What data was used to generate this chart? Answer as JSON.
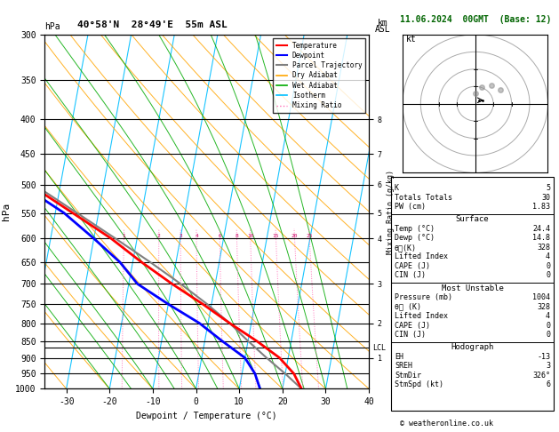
{
  "title_left": "40°58'N  28°49'E  55m ASL",
  "title_right": "11.06.2024  00GMT  (Base: 12)",
  "xlabel": "Dewpoint / Temperature (°C)",
  "ylabel_left": "hPa",
  "ylabel_right2": "Mixing Ratio (g/kg)",
  "pressure_levels": [
    300,
    350,
    400,
    450,
    500,
    550,
    600,
    650,
    700,
    750,
    800,
    850,
    900,
    950,
    1000
  ],
  "pressure_labels": [
    "300",
    "350",
    "400",
    "450",
    "500",
    "550",
    "600",
    "650",
    "700",
    "750",
    "800",
    "850",
    "900",
    "950",
    "1000"
  ],
  "temp_range": [
    -35,
    40
  ],
  "temp_ticks": [
    -30,
    -20,
    -10,
    0,
    10,
    20,
    30,
    40
  ],
  "skew_factor": 15,
  "isotherm_color": "#00BFFF",
  "dry_adiabat_color": "#FFA500",
  "wet_adiabat_color": "#00AA00",
  "mixing_ratio_color": "#FF69B4",
  "mixing_ratios": [
    1,
    2,
    3,
    4,
    6,
    8,
    10,
    15,
    20,
    25
  ],
  "temperature_profile_T": [
    24.4,
    22.0,
    18.0,
    12.0,
    5.0,
    -2.0,
    -10.0,
    -18.0,
    -26.0,
    -36.0,
    -47.0,
    -57.0,
    -60.0
  ],
  "temperature_profile_P": [
    1000,
    950,
    900,
    850,
    800,
    750,
    700,
    650,
    600,
    550,
    500,
    450,
    400
  ],
  "dewpoint_profile_T": [
    14.8,
    13.0,
    10.0,
    4.0,
    -2.0,
    -10.0,
    -18.0,
    -23.0,
    -30.0,
    -38.0,
    -49.0,
    -60.0,
    -70.0
  ],
  "dewpoint_profile_P": [
    1000,
    950,
    900,
    850,
    800,
    750,
    700,
    650,
    600,
    550,
    500,
    450,
    400
  ],
  "parcel_T": [
    24.4,
    20.0,
    15.0,
    10.0,
    5.0,
    -1.0,
    -8.0,
    -16.0,
    -25.0,
    -35.0,
    -46.0,
    -57.0,
    -62.0
  ],
  "parcel_P": [
    1000,
    950,
    900,
    850,
    800,
    750,
    700,
    650,
    600,
    550,
    500,
    450,
    400
  ],
  "km_ticks": [
    1,
    2,
    3,
    4,
    5,
    6,
    7,
    8
  ],
  "km_pressures": [
    900,
    800,
    700,
    600,
    550,
    500,
    450,
    400
  ],
  "lcl_pressure": 870,
  "temp_line_color": "#FF0000",
  "dewp_line_color": "#0000FF",
  "parcel_line_color": "#808080",
  "info_K": 5,
  "info_TT": 30,
  "info_PW": 1.83,
  "sfc_temp": 24.4,
  "sfc_dewp": 14.8,
  "sfc_theta_e": 328,
  "sfc_lifted_index": 4,
  "sfc_cape": 0,
  "sfc_cin": 0,
  "mu_pressure": 1004,
  "mu_theta_e": 328,
  "mu_lifted_index": 4,
  "mu_cape": 0,
  "mu_cin": 0,
  "hodo_EH": -13,
  "hodo_SREH": 3,
  "hodo_StmDir": 326,
  "hodo_StmSpd": 6,
  "copyright": "© weatheronline.co.uk"
}
